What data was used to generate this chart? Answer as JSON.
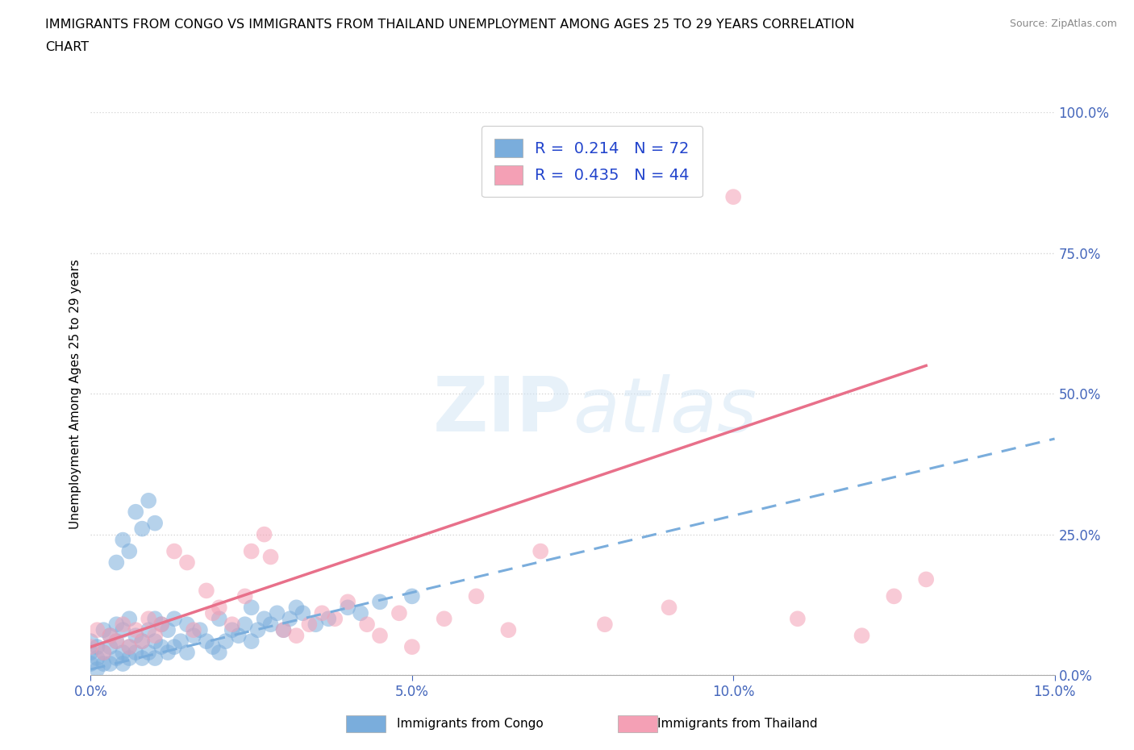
{
  "title_line1": "IMMIGRANTS FROM CONGO VS IMMIGRANTS FROM THAILAND UNEMPLOYMENT AMONG AGES 25 TO 29 YEARS CORRELATION",
  "title_line2": "CHART",
  "source_text": "Source: ZipAtlas.com",
  "ylabel": "Unemployment Among Ages 25 to 29 years",
  "xlim": [
    0.0,
    0.15
  ],
  "ylim": [
    0.0,
    1.0
  ],
  "xticks": [
    0.0,
    0.05,
    0.1,
    0.15
  ],
  "xticklabels": [
    "0.0%",
    "5.0%",
    "10.0%",
    "15.0%"
  ],
  "yticks": [
    0.0,
    0.25,
    0.5,
    0.75,
    1.0
  ],
  "yticklabels": [
    "0.0%",
    "25.0%",
    "50.0%",
    "75.0%",
    "100.0%"
  ],
  "congo_color": "#7aaddc",
  "congo_edge_color": "#5599cc",
  "thailand_color": "#f4a0b5",
  "thailand_edge_color": "#e07090",
  "congo_R": 0.214,
  "congo_N": 72,
  "thailand_R": 0.435,
  "thailand_N": 44,
  "watermark": "ZIPatlas",
  "background_color": "#ffffff",
  "grid_color": "#cccccc",
  "tick_color": "#4466bb",
  "legend_label_color": "#2244cc",
  "trendline_blue_x0": 0.0,
  "trendline_blue_y0": 0.01,
  "trendline_blue_x1": 0.15,
  "trendline_blue_y1": 0.42,
  "trendline_pink_x0": 0.0,
  "trendline_pink_y0": 0.05,
  "trendline_pink_x1": 0.13,
  "trendline_pink_y1": 0.55,
  "congo_x": [
    0.0,
    0.0,
    0.0,
    0.001,
    0.001,
    0.001,
    0.002,
    0.002,
    0.002,
    0.003,
    0.003,
    0.003,
    0.004,
    0.004,
    0.004,
    0.005,
    0.005,
    0.005,
    0.006,
    0.006,
    0.006,
    0.007,
    0.007,
    0.008,
    0.008,
    0.009,
    0.009,
    0.01,
    0.01,
    0.01,
    0.011,
    0.011,
    0.012,
    0.012,
    0.013,
    0.013,
    0.014,
    0.015,
    0.015,
    0.016,
    0.017,
    0.018,
    0.019,
    0.02,
    0.02,
    0.021,
    0.022,
    0.023,
    0.024,
    0.025,
    0.025,
    0.026,
    0.027,
    0.028,
    0.029,
    0.03,
    0.031,
    0.032,
    0.033,
    0.035,
    0.037,
    0.04,
    0.042,
    0.045,
    0.05,
    0.01,
    0.009,
    0.008,
    0.007,
    0.006,
    0.005,
    0.004
  ],
  "congo_y": [
    0.02,
    0.04,
    0.06,
    0.01,
    0.03,
    0.05,
    0.02,
    0.04,
    0.08,
    0.02,
    0.05,
    0.07,
    0.03,
    0.06,
    0.09,
    0.02,
    0.04,
    0.08,
    0.03,
    0.05,
    0.1,
    0.04,
    0.07,
    0.03,
    0.06,
    0.04,
    0.08,
    0.03,
    0.06,
    0.1,
    0.05,
    0.09,
    0.04,
    0.08,
    0.05,
    0.1,
    0.06,
    0.04,
    0.09,
    0.07,
    0.08,
    0.06,
    0.05,
    0.04,
    0.1,
    0.06,
    0.08,
    0.07,
    0.09,
    0.06,
    0.12,
    0.08,
    0.1,
    0.09,
    0.11,
    0.08,
    0.1,
    0.12,
    0.11,
    0.09,
    0.1,
    0.12,
    0.11,
    0.13,
    0.14,
    0.27,
    0.31,
    0.26,
    0.29,
    0.22,
    0.24,
    0.2
  ],
  "thailand_x": [
    0.0,
    0.001,
    0.002,
    0.003,
    0.004,
    0.005,
    0.006,
    0.007,
    0.008,
    0.009,
    0.01,
    0.011,
    0.013,
    0.015,
    0.016,
    0.018,
    0.019,
    0.02,
    0.022,
    0.024,
    0.025,
    0.027,
    0.028,
    0.03,
    0.032,
    0.034,
    0.036,
    0.038,
    0.04,
    0.043,
    0.045,
    0.048,
    0.05,
    0.055,
    0.06,
    0.065,
    0.07,
    0.08,
    0.09,
    0.1,
    0.11,
    0.12,
    0.125,
    0.13
  ],
  "thailand_y": [
    0.05,
    0.08,
    0.04,
    0.07,
    0.06,
    0.09,
    0.05,
    0.08,
    0.06,
    0.1,
    0.07,
    0.09,
    0.22,
    0.2,
    0.08,
    0.15,
    0.11,
    0.12,
    0.09,
    0.14,
    0.22,
    0.25,
    0.21,
    0.08,
    0.07,
    0.09,
    0.11,
    0.1,
    0.13,
    0.09,
    0.07,
    0.11,
    0.05,
    0.1,
    0.14,
    0.08,
    0.22,
    0.09,
    0.12,
    0.85,
    0.1,
    0.07,
    0.14,
    0.17
  ]
}
